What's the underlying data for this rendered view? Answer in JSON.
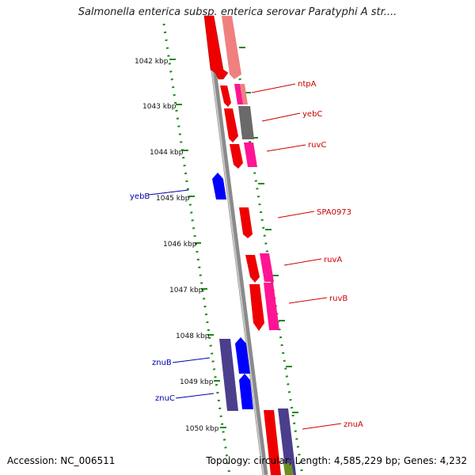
{
  "title": "Salmonella enterica subsp. enterica serovar Paratyphi A str....",
  "footer": {
    "accession": "Accession: NC_006511",
    "summary": "Topology: circular; Length: 4,585,229 bp; Genes: 4,232"
  },
  "colors": {
    "tick_green": "#1a8a1a",
    "backbone": "#8a8a8a",
    "gene_red": "#ee0000",
    "gene_pink": "#ff1493",
    "gene_light_pink": "#f08080",
    "gene_gray": "#6a6a6a",
    "gene_blue": "#0000ff",
    "gene_dark_blue": "#4b3e8c",
    "label_red": "#cc0000",
    "label_blue": "#0000aa"
  },
  "ticks": [
    "1042 kbp",
    "1043 kbp",
    "1044 kbp",
    "1045 kbp",
    "1046 kbp",
    "1047 kbp",
    "1048 kbp",
    "1049 kbp",
    "1050 kbp"
  ],
  "labels_right": [
    "ntpA",
    "yebC",
    "ruvC",
    "SPA0973",
    "ruvA",
    "ruvB",
    "znuA"
  ],
  "labels_left": [
    "yebB",
    "znuB",
    "znuC"
  ]
}
